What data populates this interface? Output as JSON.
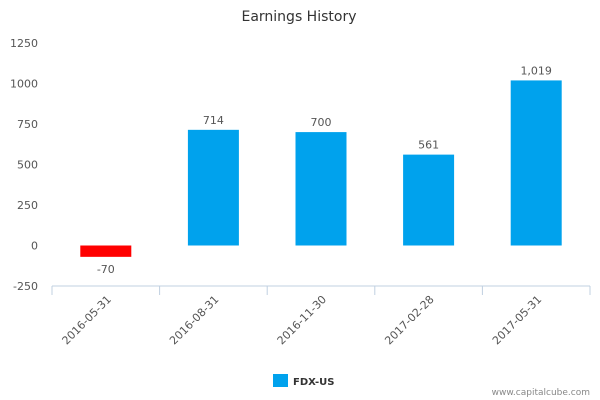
{
  "credit": "www.capitalcube.com",
  "colors": {
    "positive": "#00a2ed",
    "negative": "#ff0000",
    "axis": "#c0d0e0"
  },
  "chart_data": {
    "type": "bar",
    "title": "Earnings History",
    "xlabel": "",
    "ylabel": "",
    "categories": [
      "2016-05-31",
      "2016-08-31",
      "2016-11-30",
      "2017-02-28",
      "2017-05-31"
    ],
    "series": [
      {
        "name": "FDX-US",
        "values": [
          -70,
          714,
          700,
          561,
          1019
        ],
        "data_labels": [
          "-70",
          "714",
          "700",
          "561",
          "1,019"
        ]
      }
    ],
    "ylim": [
      -250,
      1250
    ],
    "yticks": [
      "-250",
      "0",
      "250",
      "500",
      "750",
      "1000",
      "1250"
    ],
    "grid": false,
    "legend_position": "bottom-center"
  }
}
